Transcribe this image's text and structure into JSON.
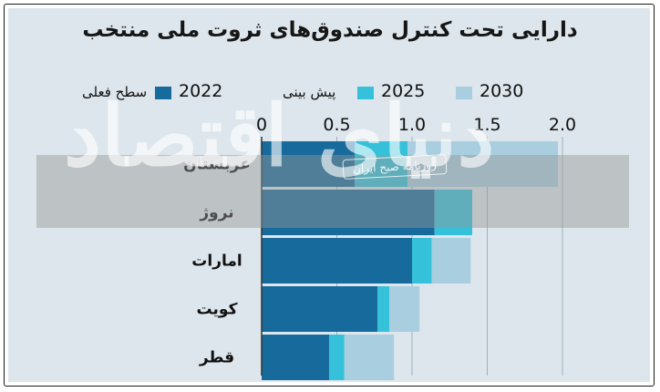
{
  "title": "دارایی تحت کنترل صندوق‌های ثروت ملی منتخب",
  "legend": {
    "current_label": "سطح فعلی",
    "forecast_label": "پیش بینی",
    "items": [
      {
        "label": "2022",
        "color": "#176b9c"
      },
      {
        "label": "2025",
        "color": "#34c1d9"
      },
      {
        "label": "2030",
        "color": "#a8cedf"
      }
    ]
  },
  "watermark": {
    "logo": "دنیای اقتصاد",
    "stamp": "روزنامه صبح ایران"
  },
  "chart_data": {
    "type": "bar",
    "orientation": "horizontal",
    "stacked": true,
    "title": "دارایی تحت کنترل صندوق‌های ثروت ملی منتخب",
    "categories": [
      "عربستان",
      "نروژ",
      "امارات",
      "کویت",
      "قطر"
    ],
    "series": [
      {
        "name": "2022",
        "color": "#176b9c",
        "values": [
          0.62,
          1.15,
          1.0,
          0.77,
          0.45
        ]
      },
      {
        "name": "2025",
        "color": "#34c1d9",
        "values": [
          0.35,
          0.25,
          0.13,
          0.08,
          0.1
        ]
      },
      {
        "name": "2030",
        "color": "#a8cedf",
        "values": [
          1.0,
          0.0,
          0.26,
          0.2,
          0.33
        ]
      }
    ],
    "xlim": [
      0,
      2.0
    ],
    "xticks": [
      "0",
      "0.5",
      "1.0",
      "1.5",
      "2.0"
    ],
    "xaxis_position": "top",
    "grid": true,
    "legend_position": "top"
  }
}
